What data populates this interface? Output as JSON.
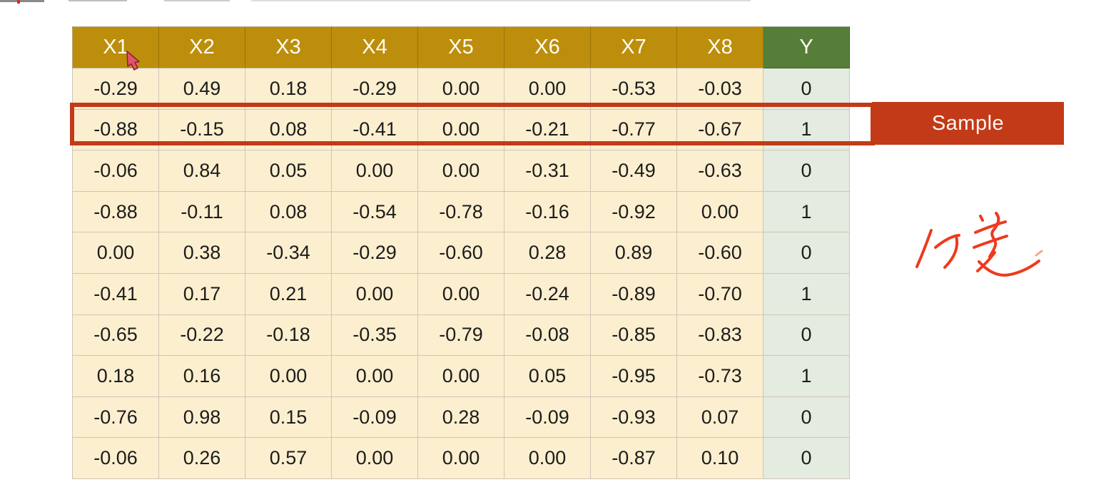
{
  "theme": {
    "bg": "#ffffff",
    "gold": "#bd8e0c",
    "green": "#567e38",
    "cream": "#fcefcf",
    "mint": "#e4ebe0",
    "grid": "#cdc6b6",
    "red": "#c23a18",
    "handwriting_red": "#ee3a1e"
  },
  "table": {
    "columns": [
      "X1",
      "X2",
      "X3",
      "X4",
      "X5",
      "X6",
      "X7",
      "X8",
      "Y"
    ],
    "rows": [
      {
        "values": [
          "-0.29",
          "0.49",
          "0.18",
          "-0.29",
          "0.00",
          "0.00",
          "-0.53",
          "-0.03"
        ],
        "y": "0"
      },
      {
        "values": [
          "-0.88",
          "-0.15",
          "0.08",
          "-0.41",
          "0.00",
          "-0.21",
          "-0.77",
          "-0.67"
        ],
        "y": "1"
      },
      {
        "values": [
          "-0.06",
          "0.84",
          "0.05",
          "0.00",
          "0.00",
          "-0.31",
          "-0.49",
          "-0.63"
        ],
        "y": "0"
      },
      {
        "values": [
          "-0.88",
          "-0.11",
          "0.08",
          "-0.54",
          "-0.78",
          "-0.16",
          "-0.92",
          "0.00"
        ],
        "y": "1"
      },
      {
        "values": [
          "0.00",
          "0.38",
          "-0.34",
          "-0.29",
          "-0.60",
          "0.28",
          "0.89",
          "-0.60"
        ],
        "y": "0"
      },
      {
        "values": [
          "-0.41",
          "0.17",
          "0.21",
          "0.00",
          "0.00",
          "-0.24",
          "-0.89",
          "-0.70"
        ],
        "y": "1"
      },
      {
        "values": [
          "-0.65",
          "-0.22",
          "-0.18",
          "-0.35",
          "-0.79",
          "-0.08",
          "-0.85",
          "-0.83"
        ],
        "y": "0"
      },
      {
        "values": [
          "0.18",
          "0.16",
          "0.00",
          "0.00",
          "0.00",
          "0.05",
          "-0.95",
          "-0.73"
        ],
        "y": "1"
      },
      {
        "values": [
          "-0.76",
          "0.98",
          "0.15",
          "-0.09",
          "0.28",
          "-0.09",
          "-0.93",
          "0.07"
        ],
        "y": "0"
      },
      {
        "values": [
          "-0.06",
          "0.26",
          "0.57",
          "0.00",
          "0.00",
          "0.00",
          "-0.87",
          "0.10"
        ],
        "y": "0"
      }
    ],
    "highlighted_row_index": 1
  },
  "annotations": {
    "sample_label": "Sample",
    "handwriting_text": "分类"
  }
}
